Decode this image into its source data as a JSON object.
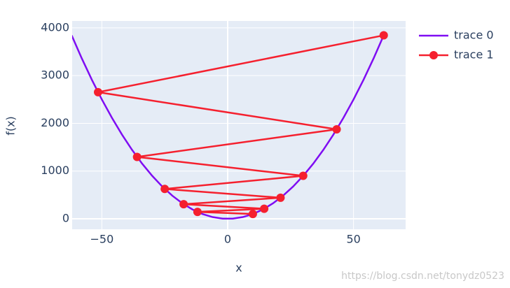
{
  "chart_data": {
    "type": "line",
    "x_label": "x",
    "y_label": "f(x)",
    "series": [
      {
        "name": "trace 0",
        "color": "#7f0df2",
        "mode": "lines",
        "x": [
          -62,
          -58,
          -54,
          -50,
          -46,
          -42,
          -38,
          -34,
          -30,
          -26,
          -22,
          -18,
          -14,
          -10,
          -6,
          -2,
          2,
          6,
          10,
          14,
          18,
          22,
          26,
          30,
          34,
          38,
          42,
          46,
          50,
          54,
          58,
          62
        ],
        "y": [
          3844,
          3364,
          2916,
          2500,
          2116,
          1764,
          1444,
          1156,
          900,
          676,
          484,
          324,
          196,
          100,
          36,
          4,
          4,
          36,
          100,
          196,
          324,
          484,
          676,
          900,
          1156,
          1444,
          1764,
          2116,
          2500,
          2916,
          3364,
          3844
        ]
      },
      {
        "name": "trace 1",
        "color": "#f5202e",
        "mode": "lines+markers",
        "x": [
          62,
          -51.5,
          43.3,
          -36,
          30,
          -25,
          21,
          -17.5,
          14.5,
          -12,
          10
        ],
        "y": [
          3844,
          2652.25,
          1874.89,
          1296,
          900,
          625,
          441,
          306.25,
          210.25,
          144,
          100
        ]
      }
    ],
    "xlim": [
      -61.8,
      70.7
    ],
    "ylim": [
      -220,
      4145
    ],
    "xticks": [
      {
        "value": -50,
        "label": "−50"
      },
      0,
      50
    ],
    "yticks": [
      0,
      1000,
      2000,
      3000,
      4000
    ],
    "grid": true,
    "legend": "right",
    "watermark": "https://blog.csdn.net/tonydz0523"
  }
}
